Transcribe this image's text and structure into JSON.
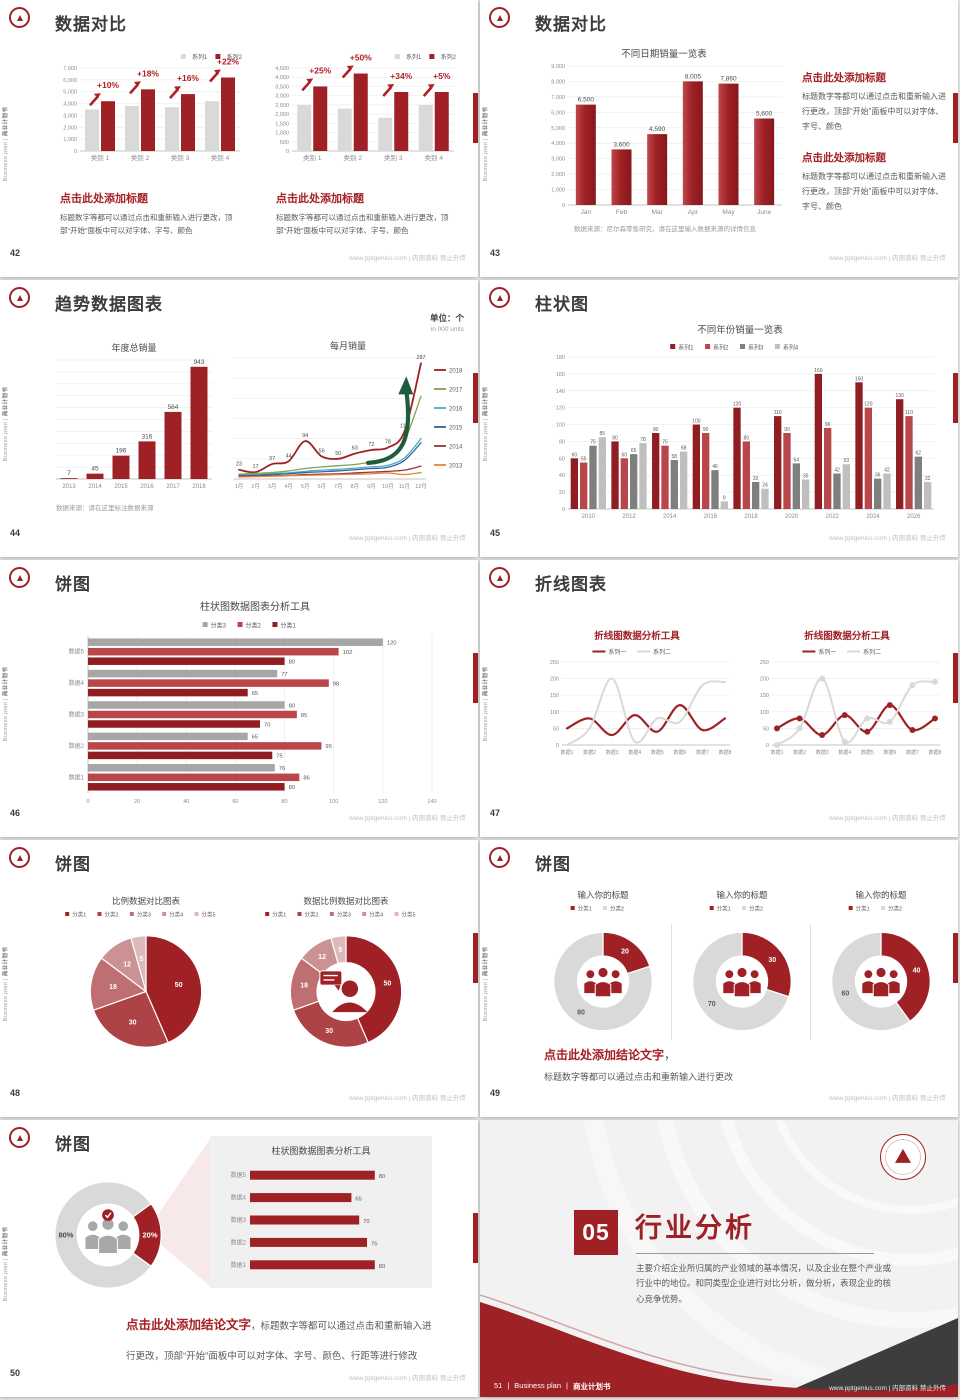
{
  "deck": {
    "brand_en": "Business plan",
    "brand_sep": "|",
    "brand_zh": "商业计划书",
    "footer_site": "www.pptgenius.com | 内部资料 禁止外传",
    "accent_color": "#A02125"
  },
  "slides": {
    "s42": {
      "page": "42",
      "title": "数据对比",
      "caption_left": {
        "heading": "点击此处添加标题",
        "body": "标题数字等都可以通过点击和重新输入进行更改，顶部“开始”面板中可以对字体、字号、颜色"
      },
      "caption_right": {
        "heading": "点击此处添加标题",
        "body": "标题数字等都可以通过点击和重新输入进行更改，顶部“开始”面板中可以对字体、字号、颜色"
      }
    },
    "s43": {
      "page": "43",
      "title": "数据对比",
      "caption_top": {
        "heading": "点击此处添加标题",
        "body": "标题数字等都可以通过点击和重新输入进行更改，顶部“开始”面板中可以对字体、字号、颜色"
      },
      "caption_bottom": {
        "heading": "点击此处添加标题",
        "body": "标题数字等都可以通过点击和重新输入进行更改，顶部“开始”面板中可以对字体、字号、颜色"
      },
      "source": "数据来源：尼尔森零售研究，请在这里输入数据来源的详情信息"
    },
    "s44": {
      "page": "44",
      "title": "趋势数据图表",
      "unit_zh": "单位：个",
      "unit_en": "in 000 units",
      "source": "数据来源：请在这里标注数据来源"
    },
    "s45": {
      "page": "45",
      "title": "柱状图"
    },
    "s46": {
      "page": "46",
      "title": "饼图"
    },
    "s47": {
      "page": "47",
      "title": "折线图表"
    },
    "s48": {
      "page": "48",
      "title": "饼图"
    },
    "s49": {
      "page": "49",
      "title": "饼图",
      "conclusion": {
        "heading": "点击此处添加结论文字",
        "comma": "，",
        "body": "标题数字等都可以通过点击和重新输入进行更改"
      }
    },
    "s50": {
      "page": "50",
      "title": "饼图",
      "conclusion": {
        "heading": "点击此处添加结论文字",
        "body": "，标题数字等都可以通过点击和重新输入进行更改，顶部“开始”面板中可以对字体、字号、颜色、行距等进行修改"
      }
    },
    "s51": {
      "page": "51",
      "number": "05",
      "title": "行业分析",
      "body": "主要介绍企业所归属的产业领域的基本情况，以及企业在整个产业或行业中的地位。和同类型企业进行对比分析，做分析，表现企业的核心竞争优势。"
    }
  },
  "chart_data": [
    {
      "render": "columns",
      "legend": {
        "pos": "tr",
        "items": [
          {
            "label": "系列1",
            "color": "#D9D9D9"
          },
          {
            "label": "系列2",
            "color": "#A02125"
          }
        ]
      },
      "categories": [
        "类别 1",
        "类别 2",
        "类别 3",
        "类别 4"
      ],
      "series": [
        {
          "name": "系列1",
          "color": "#D9D9D9",
          "values": [
            3500,
            3800,
            3700,
            4200
          ]
        },
        {
          "name": "系列2",
          "color": "#A02125",
          "values": [
            4200,
            5200,
            4800,
            6200
          ]
        }
      ],
      "ylim": [
        0,
        7000
      ],
      "ytick": 1000,
      "yfmt": "comma",
      "pct": [
        "+10%",
        "+18%",
        "+16%",
        "+22%"
      ]
    },
    {
      "render": "columns",
      "legend": {
        "pos": "tr",
        "items": [
          {
            "label": "系列1",
            "color": "#D9D9D9"
          },
          {
            "label": "系列2",
            "color": "#A02125"
          }
        ]
      },
      "categories": [
        "类别 1",
        "类别 2",
        "类别 3",
        "类别 4"
      ],
      "series": [
        {
          "name": "系列1",
          "color": "#D9D9D9",
          "values": [
            2500,
            2300,
            1800,
            2500
          ]
        },
        {
          "name": "系列2",
          "color": "#A02125",
          "values": [
            3500,
            4200,
            3200,
            3200
          ]
        }
      ],
      "ylim": [
        0,
        4500
      ],
      "ytick": 500,
      "yfmt": "comma",
      "pct": [
        "+25%",
        "+50%",
        "+34%",
        "+5%"
      ]
    },
    {
      "render": "columns",
      "title": "不同日期销量一览表",
      "titleSize": 9.5,
      "categories": [
        "Jan",
        "Feb",
        "Mar",
        "Apr",
        "May",
        "June"
      ],
      "series": [
        {
          "name": "销量",
          "color": "#9E2125",
          "values": [
            6500,
            3600,
            4590,
            8005,
            7860,
            5600
          ]
        }
      ],
      "labels": [
        "6,500",
        "3,600",
        "4,590",
        "8,005",
        "7,860",
        "5,600"
      ],
      "ylim": [
        0,
        9000
      ],
      "ytick": 1000,
      "yfmt": "comma",
      "maxBar": 20,
      "gradient": true
    },
    {
      "render": "columns",
      "title": "年度总销量",
      "titleSize": 9,
      "categories": [
        "2013",
        "2014",
        "2015",
        "2016",
        "2017",
        "2018"
      ],
      "series": [
        {
          "name": "销量",
          "color": "#9E2125",
          "values": [
            7,
            45,
            196,
            316,
            564,
            943
          ]
        }
      ],
      "labels": [
        "7",
        "45",
        "196",
        "316",
        "564",
        "943"
      ],
      "ylim": [
        0,
        1000
      ],
      "ytick": 100,
      "showY": false,
      "maxBar": 17,
      "catSize": 6
    },
    {
      "render": "lines",
      "title": "每月销量",
      "titleSize": 9,
      "categories": [
        "1月",
        "2月",
        "3月",
        "4月",
        "5月",
        "6月",
        "7月",
        "8月",
        "9月",
        "10月",
        "11月",
        "12月"
      ],
      "ylim": [
        0,
        300
      ],
      "ytick": 50,
      "showY": false,
      "smooth": true,
      "legend": {
        "pos": "right"
      },
      "series": [
        {
          "name": "2018",
          "color": "#9E2125",
          "width": 1.8,
          "values": [
            23,
            17,
            37,
            44,
            94,
            56,
            50,
            63,
            72,
            78,
            118,
            287
          ],
          "labels": [
            "23",
            "17",
            "37",
            "44",
            "94",
            "56",
            "50",
            "63",
            "72",
            "78",
            "118",
            "287"
          ]
        },
        {
          "name": "2017",
          "color": "#7FA650",
          "width": 1.3,
          "values": [
            12,
            14,
            16,
            20,
            26,
            30,
            33,
            36,
            42,
            48,
            95,
            205
          ]
        },
        {
          "name": "2016",
          "color": "#4BACC6",
          "width": 1.3,
          "values": [
            10,
            11,
            13,
            15,
            19,
            22,
            24,
            27,
            30,
            34,
            52,
            100
          ]
        },
        {
          "name": "2015",
          "color": "#31659C",
          "width": 1.3,
          "values": [
            8,
            9,
            11,
            13,
            16,
            18,
            20,
            23,
            26,
            29,
            46,
            90
          ]
        },
        {
          "name": "2014",
          "color": "#953735",
          "width": 1.3,
          "values": [
            6,
            7,
            8,
            9,
            11,
            12,
            13,
            15,
            17,
            19,
            22,
            32
          ]
        },
        {
          "name": "2013",
          "color": "#E4813D",
          "width": 1.3,
          "values": [
            5,
            6,
            7,
            8,
            9,
            10,
            11,
            12,
            13,
            15,
            11,
            16
          ]
        }
      ],
      "arrow": true,
      "catSize": 5.5,
      "labelSize": 5.5
    },
    {
      "render": "columns",
      "title": "不同年份销量一览表",
      "titleSize": 9.5,
      "legend": {
        "pos": "tc",
        "items": [
          {
            "label": "系列1",
            "color": "#8F1D21"
          },
          {
            "label": "系列2",
            "color": "#B8464B"
          },
          {
            "label": "系列3",
            "color": "#7F7F7F"
          },
          {
            "label": "系列4",
            "color": "#BFBFBF"
          }
        ]
      },
      "categories": [
        "2010",
        "2012",
        "2014",
        "2016",
        "2018",
        "2020",
        "2022",
        "2024",
        "2026"
      ],
      "series": [
        {
          "name": "系列1",
          "color": "#8F1D21",
          "values": [
            60,
            80,
            90,
            100,
            120,
            110,
            160,
            150,
            130
          ]
        },
        {
          "name": "系列2",
          "color": "#B8464B",
          "values": [
            55,
            60,
            75,
            90,
            80,
            90,
            96,
            120,
            110
          ]
        },
        {
          "name": "系列3",
          "color": "#7F7F7F",
          "values": [
            75,
            65,
            58,
            46,
            32,
            54,
            42,
            36,
            62
          ]
        },
        {
          "name": "系列4",
          "color": "#BFBFBF",
          "values": [
            85,
            78,
            68,
            9,
            24,
            35,
            53,
            42,
            32
          ]
        }
      ],
      "ylim": [
        0,
        180
      ],
      "ytick": 20,
      "valueLabels": true,
      "labelSize": 5,
      "catSize": 6
    },
    {
      "render": "hbars",
      "title": "柱状图数据图表分析工具",
      "titleSize": 10,
      "legend": {
        "pos": "tc",
        "items": [
          {
            "label": "分类3",
            "color": "#A6A6A6"
          },
          {
            "label": "分类2",
            "color": "#B8464B"
          },
          {
            "label": "分类1",
            "color": "#8F1D21"
          }
        ]
      },
      "categories": [
        "数据5",
        "数据4",
        "数据3",
        "数据2",
        "数据1"
      ],
      "series": [
        {
          "name": "分类3",
          "color": "#A6A6A6",
          "values": [
            120,
            77,
            80,
            65,
            76
          ]
        },
        {
          "name": "分类2",
          "color": "#B8464B",
          "values": [
            102,
            98,
            85,
            95,
            86
          ]
        },
        {
          "name": "分类1",
          "color": "#8F1D21",
          "values": [
            80,
            65,
            70,
            75,
            80
          ]
        }
      ],
      "xlim": [
        0,
        140
      ],
      "xtick": 20,
      "valueLabels": true
    },
    {
      "render": "lines",
      "title": "折线图数据分析工具",
      "titleColor": "#A02125",
      "titleBold": true,
      "titleSize": 9.5,
      "legend": {
        "pos": "tc"
      },
      "categories": [
        "数据1",
        "数据2",
        "数据3",
        "数据4",
        "数据5",
        "数据6",
        "数据7",
        "数据8"
      ],
      "ylim": [
        0,
        250
      ],
      "ytick": 50,
      "showY": true,
      "smooth": true,
      "series": [
        {
          "name": "系列一",
          "color": "#9E2125",
          "width": 2.2,
          "values": [
            50,
            80,
            30,
            90,
            40,
            120,
            45,
            80
          ]
        },
        {
          "name": "系列二",
          "color": "#D9D9D9",
          "width": 2,
          "values": [
            0,
            50,
            200,
            10,
            80,
            70,
            180,
            190
          ]
        }
      ],
      "catSize": 5
    },
    {
      "render": "lines",
      "title": "折线图数据分析工具",
      "titleColor": "#A02125",
      "titleBold": true,
      "titleSize": 9.5,
      "legend": {
        "pos": "tc"
      },
      "markers": true,
      "categories": [
        "数据1",
        "数据2",
        "数据3",
        "数据4",
        "数据5",
        "数据6",
        "数据7",
        "数据8"
      ],
      "ylim": [
        0,
        250
      ],
      "ytick": 50,
      "showY": true,
      "smooth": true,
      "series": [
        {
          "name": "系列一",
          "color": "#9E2125",
          "width": 2.2,
          "values": [
            50,
            80,
            30,
            90,
            40,
            120,
            45,
            80
          ]
        },
        {
          "name": "系列二",
          "color": "#D9D9D9",
          "width": 2,
          "values": [
            0,
            50,
            200,
            10,
            80,
            70,
            180,
            190
          ]
        }
      ],
      "catSize": 5
    },
    {
      "render": "pie",
      "title": "比例数据对比图表",
      "titleSize": 8.5,
      "legend": {
        "pos": "tc",
        "items": [
          {
            "label": "分类1",
            "color": "#A02125"
          },
          {
            "label": "分类2",
            "color": "#AD4247"
          },
          {
            "label": "分类3",
            "color": "#BD6F72"
          },
          {
            "label": "分类4",
            "color": "#CB9294"
          },
          {
            "label": "分类5",
            "color": "#DDB9BA"
          }
        ]
      },
      "values": [
        50,
        30,
        18,
        12,
        5
      ],
      "labels": [
        "50",
        "30",
        "18",
        "12",
        "5"
      ],
      "colors": [
        "#A02125",
        "#AD4247",
        "#BD6F72",
        "#CB9294",
        "#DDB9BA"
      ],
      "labelColors": [
        "#ffffff",
        "#ffffff",
        "#ffffff",
        "#ffffff",
        "#ffffff"
      ],
      "rScale": 0.85
    },
    {
      "render": "pie",
      "title": "数据比例数据对比图表",
      "titleSize": 8.5,
      "legend": {
        "pos": "tc",
        "items": [
          {
            "label": "分类1",
            "color": "#A02125"
          },
          {
            "label": "分类2",
            "color": "#AD4247"
          },
          {
            "label": "分类3",
            "color": "#BD6F72"
          },
          {
            "label": "分类4",
            "color": "#CB9294"
          },
          {
            "label": "分类5",
            "color": "#DDB9BA"
          }
        ]
      },
      "values": [
        50,
        30,
        18,
        12,
        5
      ],
      "labels": [
        "50",
        "30",
        "18",
        "12",
        "5"
      ],
      "colors": [
        "#A02125",
        "#AD4247",
        "#BD6F72",
        "#CB9294",
        "#DDB9BA"
      ],
      "labelColors": [
        "#ffffff",
        "#ffffff",
        "#ffffff",
        "#ffffff",
        "#ffffff"
      ],
      "inner": 0.52,
      "icon": "person-bubble",
      "rScale": 0.85
    },
    {
      "render": "pie",
      "title": "输入你的标题",
      "titleSize": 8.5,
      "legend": {
        "pos": "tc",
        "items": [
          {
            "label": "分类1",
            "color": "#A02125"
          },
          {
            "label": "分类2",
            "color": "#D9D9D9"
          }
        ]
      },
      "values": [
        20,
        80
      ],
      "labels": [
        "20",
        "80"
      ],
      "colors": [
        "#A02125",
        "#D9D9D9"
      ],
      "labelColors": [
        "#ffffff",
        "#595959"
      ],
      "inner": 0.52,
      "icon": "people",
      "rScale": 0.8
    },
    {
      "render": "pie",
      "title": "输入你的标题",
      "titleSize": 8.5,
      "legend": {
        "pos": "tc",
        "items": [
          {
            "label": "分类1",
            "color": "#A02125"
          },
          {
            "label": "分类2",
            "color": "#D9D9D9"
          }
        ]
      },
      "values": [
        30,
        70
      ],
      "labels": [
        "30",
        "70"
      ],
      "colors": [
        "#A02125",
        "#D9D9D9"
      ],
      "labelColors": [
        "#ffffff",
        "#595959"
      ],
      "inner": 0.52,
      "icon": "people",
      "rScale": 0.8
    },
    {
      "render": "pie",
      "title": "输入你的标题",
      "titleSize": 8.5,
      "legend": {
        "pos": "tc",
        "items": [
          {
            "label": "分类1",
            "color": "#A02125"
          },
          {
            "label": "分类2",
            "color": "#D9D9D9"
          }
        ]
      },
      "values": [
        40,
        60
      ],
      "labels": [
        "40",
        "60"
      ],
      "colors": [
        "#A02125",
        "#D9D9D9"
      ],
      "labelColors": [
        "#ffffff",
        "#595959"
      ],
      "inner": 0.52,
      "icon": "people",
      "rScale": 0.8
    },
    {
      "render": "pie",
      "values": [
        20,
        80
      ],
      "labels": [
        "20%",
        "80%"
      ],
      "colors": [
        "#A02125",
        "#D9D9D9"
      ],
      "labelColors": [
        "#ffffff",
        "#4a4a4a"
      ],
      "inner": 0.58,
      "startAngle": 54,
      "icon": "people-gray",
      "rScale": 0.95,
      "labelSize": 7.5
    },
    {
      "render": "hbars",
      "title": "柱状图数据图表分析工具",
      "titleSize": 9,
      "categories": [
        "数据5",
        "数据4",
        "数据3",
        "数据2",
        "数据1"
      ],
      "series": [
        {
          "name": "数据",
          "color": "#9E2125",
          "values": [
            80,
            65,
            70,
            75,
            80
          ]
        }
      ],
      "xlim": [
        0,
        100
      ],
      "valueLabels": true,
      "showX": false,
      "barH": 9,
      "mL": 34
    }
  ]
}
